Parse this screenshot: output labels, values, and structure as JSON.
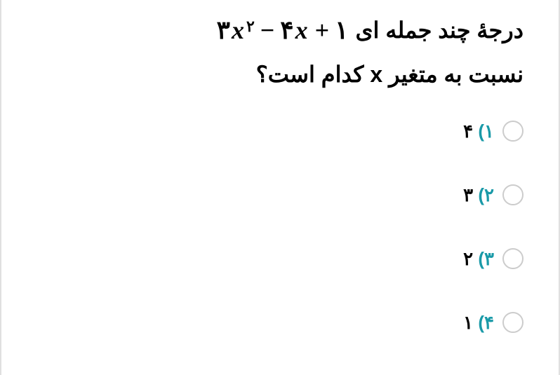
{
  "question": {
    "line1_prefix": "درجۀ چند جمله ای",
    "polynomial": {
      "term1_coef": "۳",
      "term1_var": "x",
      "term1_exp": "۲",
      "op1": "−",
      "term2_coef": "۴",
      "term2_var": "x",
      "op2": "+",
      "term3": "۱"
    },
    "line2": "نسبت به متغیر x کدام است؟"
  },
  "options": [
    {
      "number": "۱)",
      "value": "۴"
    },
    {
      "number": "۲)",
      "value": "۳"
    },
    {
      "number": "۳)",
      "value": "۲"
    },
    {
      "number": "۴)",
      "value": "۱"
    }
  ],
  "colors": {
    "option_number": "#1a9aa8",
    "option_value": "#000000",
    "radio_border": "#cccccc",
    "text": "#000000",
    "background": "#ffffff"
  },
  "typography": {
    "question_fontsize": 32,
    "option_fontsize": 26,
    "math_fontsize": 36
  }
}
